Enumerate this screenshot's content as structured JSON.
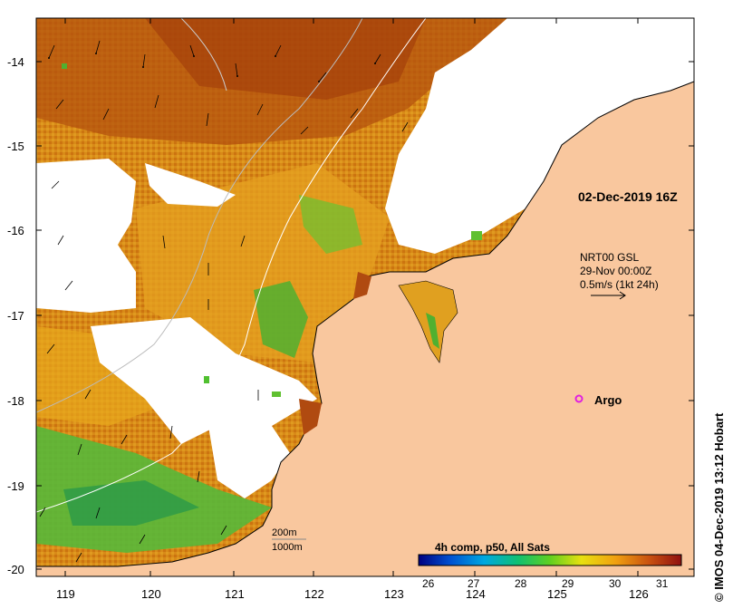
{
  "map": {
    "lat_labels": [
      "-14",
      "-15",
      "-16",
      "-17",
      "-18",
      "-19",
      "-20"
    ],
    "lon_labels": [
      "119",
      "120",
      "121",
      "122",
      "123",
      "124",
      "125",
      "126"
    ],
    "timestamp": "02-Dec-2019 16Z",
    "current_title": "NRT00 GSL",
    "current_time": "29-Nov 00:00Z",
    "current_scale": "0.5m/s (1kt 24h)",
    "argo_label": "Argo",
    "depth_200": "200m",
    "depth_1000": "1000m",
    "colorbar_title": "4h comp, p50, All Sats",
    "colorbar_ticks": [
      "26",
      "27",
      "28",
      "29",
      "30",
      "31"
    ],
    "credit": "© IMOS 04-Dec-2019 13:12 Hobart",
    "colors": {
      "land": "#f9c79e",
      "cloud": "#ffffff",
      "sst_warm": "#d07a10",
      "sst_hot": "#a0340a",
      "sst_mid": "#e8a818",
      "sst_cool": "#48b830",
      "argo": "#e020e0"
    }
  }
}
